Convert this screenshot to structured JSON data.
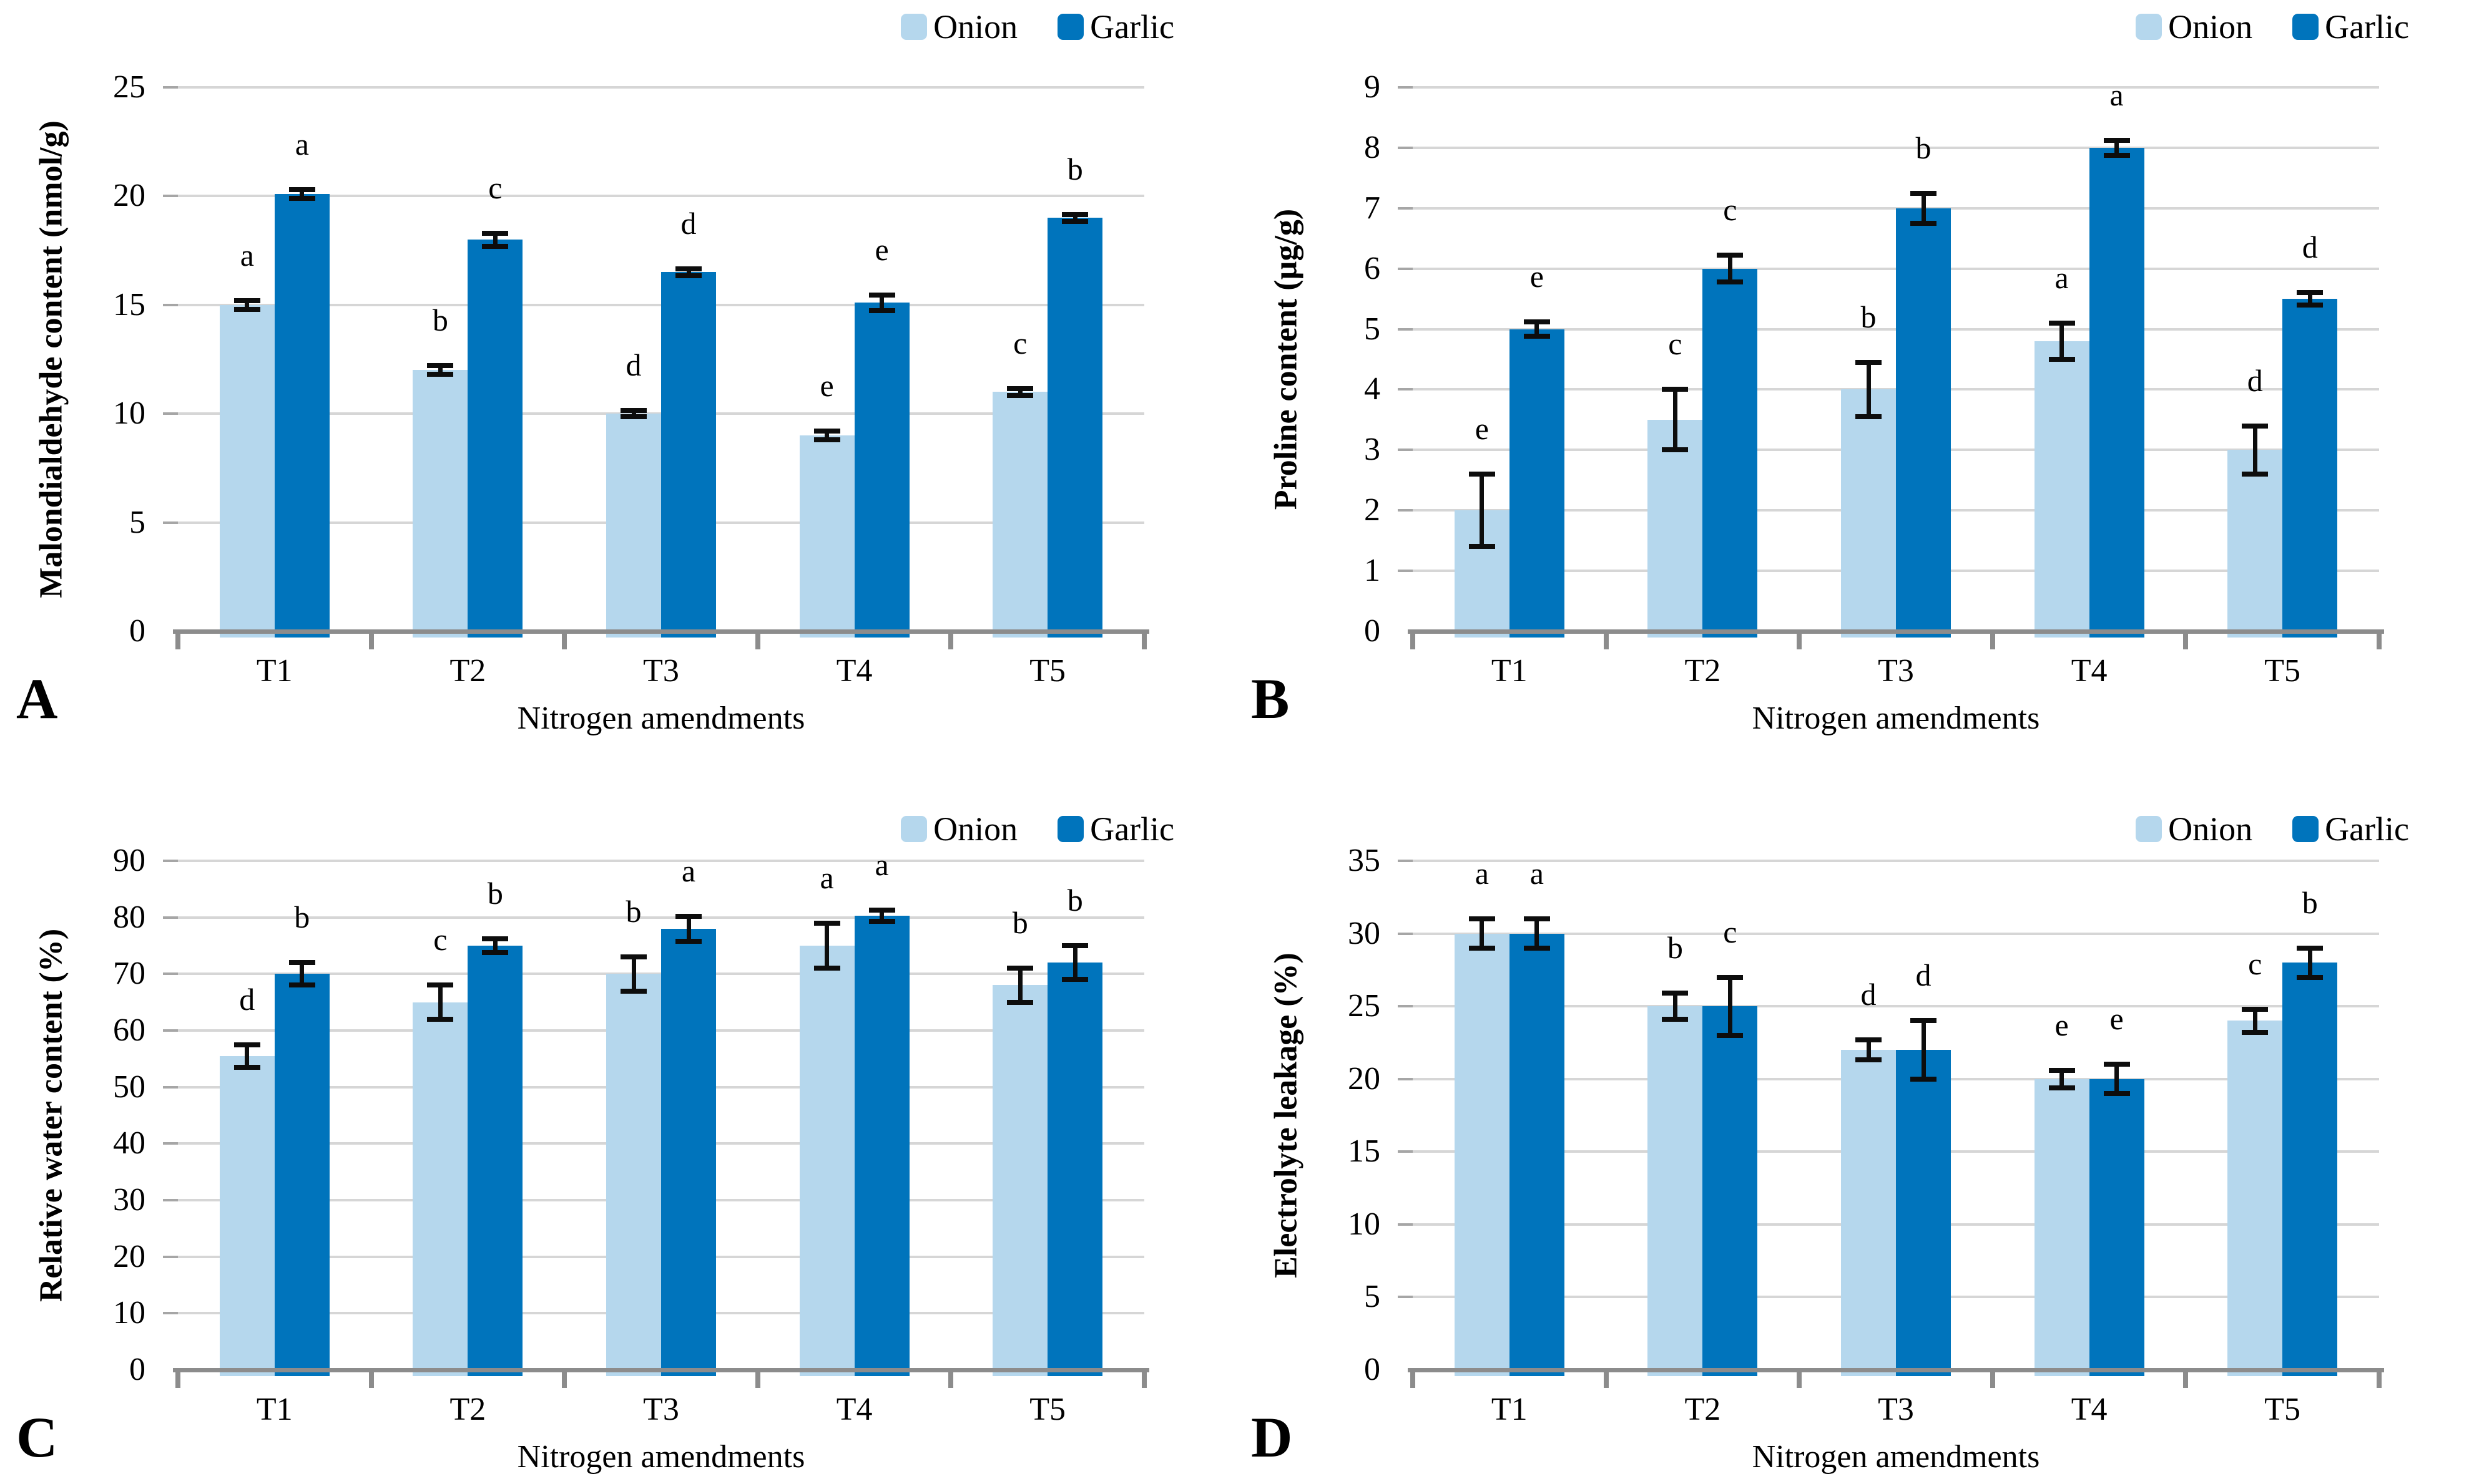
{
  "figure": {
    "colors": {
      "onion": "#B5D7ED",
      "garlic": "#0074BC",
      "gridline": "#D6D6D6",
      "axis_line": "#8C8C8C",
      "tick_mark": "#A6A6A6",
      "error_bar": "#0d0d0d",
      "text": "#000000"
    },
    "legend": {
      "items": [
        "Onion",
        "Garlic"
      ],
      "position": "top-right"
    }
  },
  "chart_data": [
    {
      "panel_label": "A",
      "type": "bar",
      "title": "",
      "ylabel": "Malondialdehyde content (nmol/g)",
      "xlabel": "Nitrogen amendments",
      "categories": [
        "T1",
        "T2",
        "T3",
        "T4",
        "T5"
      ],
      "ylim": [
        0,
        25
      ],
      "yticks": [
        0,
        5,
        10,
        15,
        20,
        25
      ],
      "grid": "horizontal",
      "legend_position": "top-right",
      "series": [
        {
          "name": "Onion",
          "color": "#B5D7ED",
          "values": [
            15,
            12,
            10,
            9,
            11
          ],
          "errors": [
            0.2,
            0.2,
            0.15,
            0.2,
            0.15
          ],
          "sig_letters": [
            "a",
            "b",
            "d",
            "e",
            "c"
          ]
        },
        {
          "name": "Garlic",
          "color": "#0074BC",
          "values": [
            20.1,
            18,
            16.5,
            15.1,
            19
          ],
          "errors": [
            0.2,
            0.3,
            0.15,
            0.35,
            0.15
          ],
          "sig_letters": [
            "a",
            "c",
            "d",
            "e",
            "b"
          ]
        }
      ]
    },
    {
      "panel_label": "B",
      "type": "bar",
      "title": "",
      "ylabel": "Proline content (µg/g)",
      "xlabel": "Nitrogen amendments",
      "categories": [
        "T1",
        "T2",
        "T3",
        "T4",
        "T5"
      ],
      "ylim": [
        0,
        9
      ],
      "yticks": [
        0,
        1,
        2,
        3,
        4,
        5,
        6,
        7,
        8,
        9
      ],
      "grid": "horizontal",
      "legend_position": "top-right",
      "series": [
        {
          "name": "Onion",
          "color": "#B5D7ED",
          "values": [
            2,
            3.5,
            4,
            4.8,
            3
          ],
          "errors": [
            0.6,
            0.5,
            0.45,
            0.3,
            0.4
          ],
          "sig_letters": [
            "e",
            "c",
            "b",
            "a",
            "d"
          ]
        },
        {
          "name": "Garlic",
          "color": "#0074BC",
          "values": [
            5,
            6,
            7,
            8,
            5.5
          ],
          "errors": [
            0.12,
            0.22,
            0.25,
            0.12,
            0.1
          ],
          "sig_letters": [
            "e",
            "c",
            "b",
            "a",
            "d"
          ]
        }
      ]
    },
    {
      "panel_label": "C",
      "type": "bar",
      "title": "",
      "ylabel": "Relative water content (%)",
      "xlabel": "Nitrogen amendments",
      "categories": [
        "T1",
        "T2",
        "T3",
        "T4",
        "T5"
      ],
      "ylim": [
        0,
        90
      ],
      "yticks": [
        0,
        10,
        20,
        30,
        40,
        50,
        60,
        70,
        80,
        90
      ],
      "grid": "horizontal",
      "legend_position": "top-right",
      "series": [
        {
          "name": "Onion",
          "color": "#B5D7ED",
          "values": [
            55.5,
            65,
            70,
            75,
            68
          ],
          "errors": [
            2,
            3,
            3,
            4,
            3
          ],
          "sig_letters": [
            "d",
            "c",
            "b",
            "a",
            "b"
          ]
        },
        {
          "name": "Garlic",
          "color": "#0074BC",
          "values": [
            70,
            75,
            78,
            80.3,
            72
          ],
          "errors": [
            2,
            1.2,
            2.2,
            1,
            3
          ],
          "sig_letters": [
            "b",
            "b",
            "a",
            "a",
            "b"
          ]
        }
      ]
    },
    {
      "panel_label": "D",
      "type": "bar",
      "title": "",
      "ylabel": "Electrolyte leakage (%)",
      "xlabel": "Nitrogen amendments",
      "categories": [
        "T1",
        "T2",
        "T3",
        "T4",
        "T5"
      ],
      "ylim": [
        0,
        35
      ],
      "yticks": [
        0,
        5,
        10,
        15,
        20,
        25,
        30,
        35
      ],
      "grid": "horizontal",
      "legend_position": "top-right",
      "series": [
        {
          "name": "Onion",
          "color": "#B5D7ED",
          "values": [
            30,
            25,
            22,
            20,
            24
          ],
          "errors": [
            1,
            0.9,
            0.7,
            0.6,
            0.8
          ],
          "sig_letters": [
            "a",
            "b",
            "d",
            "e",
            "c"
          ]
        },
        {
          "name": "Garlic",
          "color": "#0074BC",
          "values": [
            30,
            25,
            22,
            20,
            28
          ],
          "errors": [
            1,
            2,
            2,
            1,
            1
          ],
          "sig_letters": [
            "a",
            "c",
            "d",
            "e",
            "b"
          ]
        }
      ]
    }
  ]
}
